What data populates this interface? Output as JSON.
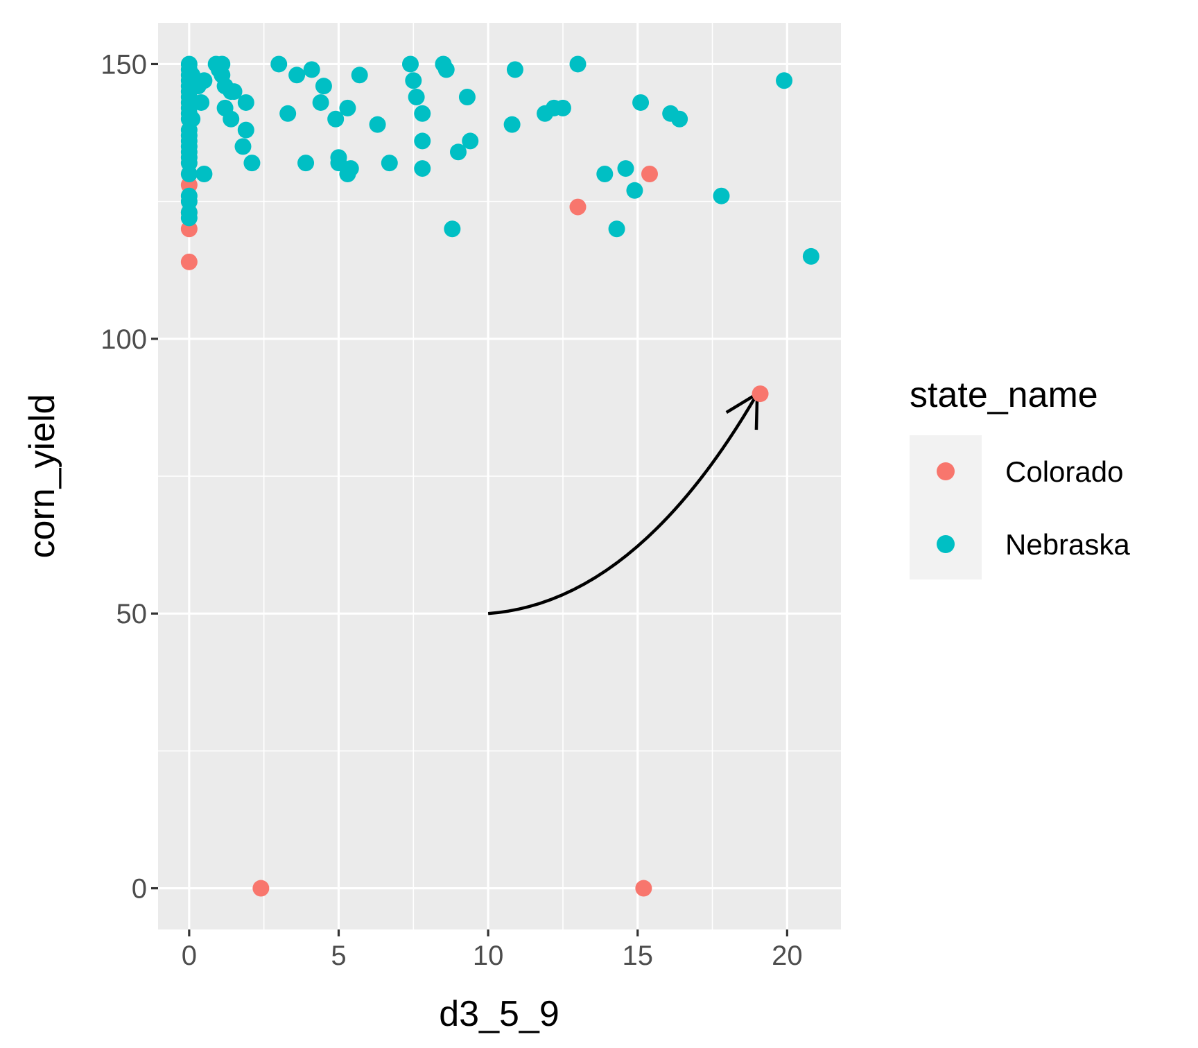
{
  "chart_data": {
    "type": "scatter",
    "xlabel": "d3_5_9",
    "ylabel": "corn_yield",
    "xlim": [
      -1.04,
      21.8
    ],
    "ylim": [
      -7.5,
      157.5
    ],
    "x_ticks": [
      0,
      5,
      10,
      15,
      20
    ],
    "y_ticks": [
      0,
      50,
      100,
      150
    ],
    "x_tick_labels": [
      "0",
      "5",
      "10",
      "15",
      "20"
    ],
    "y_tick_labels": [
      "0",
      "50",
      "100",
      "150"
    ],
    "grid": true,
    "legend": {
      "title": "state_name",
      "position": "right",
      "entries": [
        {
          "label": "Colorado",
          "color": "#F8766D"
        },
        {
          "label": "Nebraska",
          "color": "#00BFC4"
        }
      ]
    },
    "series": [
      {
        "name": "Colorado",
        "color": "#F8766D",
        "points": [
          [
            0,
            128
          ],
          [
            0,
            123
          ],
          [
            0,
            120
          ],
          [
            0,
            114
          ],
          [
            2.4,
            0
          ],
          [
            15.2,
            0
          ],
          [
            13.0,
            124
          ],
          [
            15.4,
            130
          ],
          [
            19.1,
            90
          ]
        ]
      },
      {
        "name": "Nebraska",
        "color": "#00BFC4",
        "points": [
          [
            0,
            150
          ],
          [
            0,
            149
          ],
          [
            0,
            148
          ],
          [
            0,
            147
          ],
          [
            0,
            146
          ],
          [
            0,
            145
          ],
          [
            0,
            144
          ],
          [
            0,
            143
          ],
          [
            0,
            142
          ],
          [
            0,
            141
          ],
          [
            0,
            140
          ],
          [
            0,
            138
          ],
          [
            0,
            137
          ],
          [
            0,
            136
          ],
          [
            0,
            135
          ],
          [
            0,
            134
          ],
          [
            0,
            133
          ],
          [
            0,
            132
          ],
          [
            0,
            130
          ],
          [
            0,
            126
          ],
          [
            0,
            125
          ],
          [
            0,
            123
          ],
          [
            0,
            122
          ],
          [
            0.1,
            148
          ],
          [
            0.1,
            140
          ],
          [
            0.2,
            147
          ],
          [
            0.3,
            146
          ],
          [
            0.4,
            143
          ],
          [
            0.5,
            147
          ],
          [
            0.5,
            130
          ],
          [
            0.9,
            150
          ],
          [
            1.0,
            149
          ],
          [
            1.1,
            150
          ],
          [
            1.1,
            148
          ],
          [
            1.2,
            146
          ],
          [
            1.2,
            142
          ],
          [
            1.4,
            145
          ],
          [
            1.4,
            140
          ],
          [
            1.5,
            145
          ],
          [
            1.8,
            135
          ],
          [
            1.9,
            143
          ],
          [
            1.9,
            138
          ],
          [
            2.1,
            132
          ],
          [
            3.0,
            150
          ],
          [
            3.3,
            141
          ],
          [
            3.6,
            148
          ],
          [
            3.9,
            132
          ],
          [
            4.1,
            149
          ],
          [
            4.4,
            143
          ],
          [
            4.5,
            146
          ],
          [
            4.9,
            140
          ],
          [
            5.0,
            133
          ],
          [
            5.0,
            132
          ],
          [
            5.3,
            142
          ],
          [
            5.3,
            130
          ],
          [
            5.4,
            131
          ],
          [
            5.7,
            148
          ],
          [
            6.3,
            139
          ],
          [
            6.7,
            132
          ],
          [
            7.4,
            150
          ],
          [
            7.5,
            147
          ],
          [
            7.6,
            144
          ],
          [
            7.8,
            141
          ],
          [
            7.8,
            136
          ],
          [
            7.8,
            131
          ],
          [
            8.5,
            150
          ],
          [
            8.6,
            149
          ],
          [
            8.8,
            120
          ],
          [
            9.0,
            134
          ],
          [
            9.3,
            144
          ],
          [
            9.4,
            136
          ],
          [
            10.8,
            139
          ],
          [
            10.9,
            149
          ],
          [
            11.9,
            141
          ],
          [
            12.2,
            142
          ],
          [
            12.5,
            142
          ],
          [
            13.0,
            150
          ],
          [
            13.9,
            130
          ],
          [
            14.3,
            120
          ],
          [
            14.6,
            131
          ],
          [
            14.9,
            127
          ],
          [
            15.1,
            143
          ],
          [
            16.1,
            141
          ],
          [
            16.4,
            140
          ],
          [
            17.8,
            126
          ],
          [
            19.9,
            147
          ],
          [
            20.8,
            115
          ]
        ]
      }
    ],
    "annotations": [
      {
        "type": "curved-arrow",
        "from": [
          10,
          50
        ],
        "to": [
          19,
          90
        ],
        "color": "#000000"
      }
    ]
  }
}
